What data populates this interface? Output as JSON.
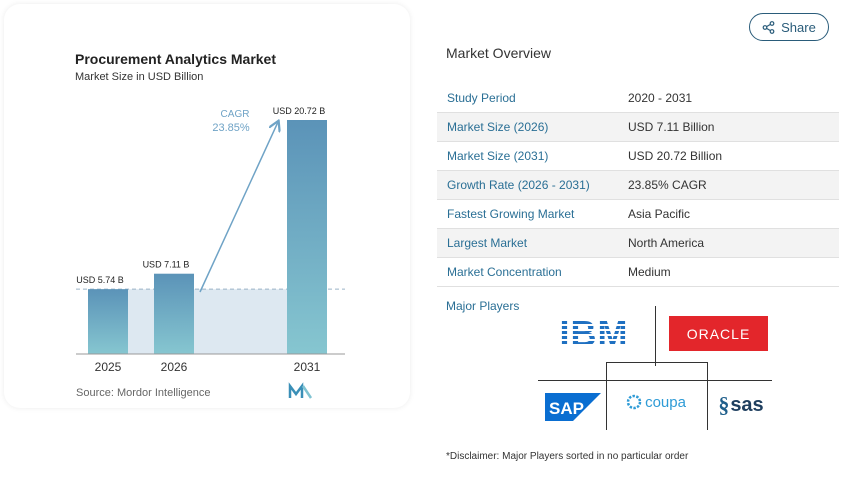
{
  "share": {
    "label": "Share",
    "icon": "share-icon"
  },
  "chart": {
    "title": "Procurement Analytics Market",
    "subtitle": "Market Size in USD Billion",
    "source": "Source: Mordor Intelligence",
    "cagr_label": "CAGR",
    "cagr_value": "23.85%"
  },
  "chart_data": {
    "type": "bar",
    "categories": [
      "2025",
      "2026",
      "2031"
    ],
    "values": [
      5.74,
      7.11,
      20.72
    ],
    "data_labels": [
      "USD 5.74 B",
      "USD 7.11 B",
      "USD 20.72 B"
    ],
    "title": "Procurement Analytics Market",
    "subtitle": "Market Size in USD Billion",
    "xlabel": "",
    "ylabel": "",
    "ylim": [
      0,
      22
    ],
    "colors": {
      "bar_top": "#5b93b8",
      "bar_bottom": "#86c6d0",
      "arrow": "#6fa3c6",
      "baseline_fill": "#dde8f1"
    }
  },
  "overview": {
    "title": "Market Overview",
    "rows": [
      {
        "key": "Study Period",
        "value": "2020 - 2031"
      },
      {
        "key": "Market Size (2026)",
        "value": "USD 7.11 Billion"
      },
      {
        "key": "Market Size (2031)",
        "value": "USD 20.72 Billion"
      },
      {
        "key": "Growth Rate (2026 - 2031)",
        "value": "23.85% CAGR"
      },
      {
        "key": "Fastest Growing Market",
        "value": "Asia Pacific"
      },
      {
        "key": "Largest Market",
        "value": "North America"
      },
      {
        "key": "Market Concentration",
        "value": "Medium"
      }
    ]
  },
  "players": {
    "label": "Major Players",
    "logos": [
      "IBM",
      "ORACLE",
      "SAP",
      "coupa",
      "sas"
    ]
  },
  "disclaimer": "*Disclaimer: Major Players sorted in no particular order",
  "colors": {
    "accent": "#2a6f95",
    "oracle_red": "#e3262b",
    "sap_blue": "#0a6ed1",
    "ibm_blue": "#1f70c1"
  }
}
